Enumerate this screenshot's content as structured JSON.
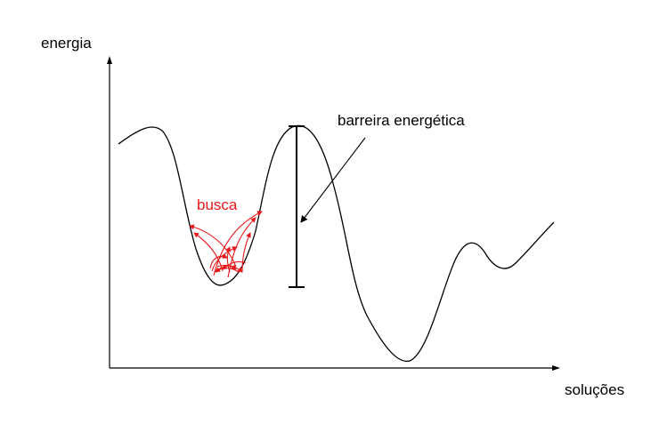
{
  "diagram": {
    "y_axis_label": "energia",
    "x_axis_label": "soluções",
    "barrier_label": "barreira energética",
    "search_label": "busca",
    "colors": {
      "curve": "#000000",
      "axes": "#000000",
      "search_arrows": "#e8191c"
    }
  }
}
